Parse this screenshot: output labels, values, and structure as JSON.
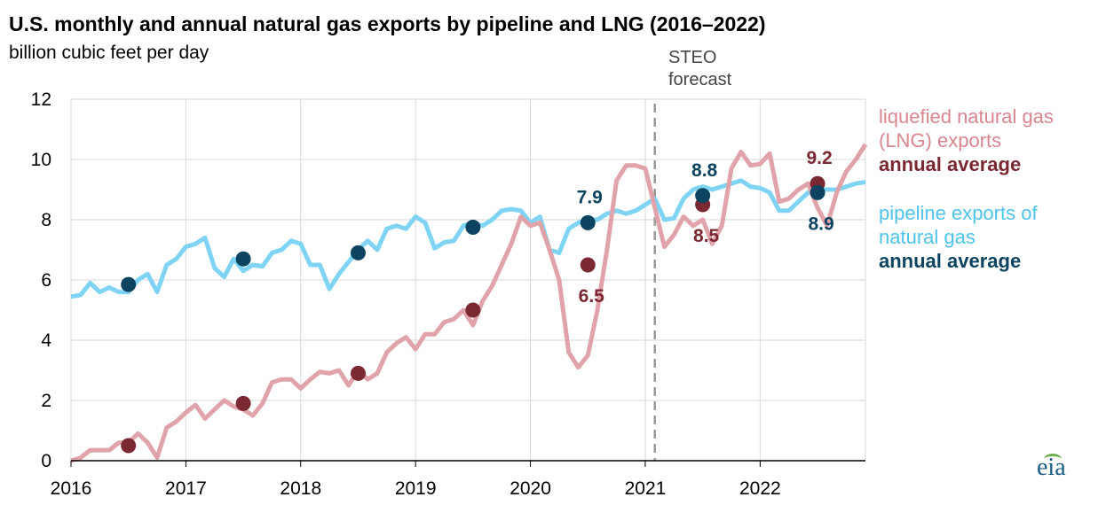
{
  "header": {
    "title": "U.S. monthly and annual natural gas exports by pipeline and LNG (2016–2022)",
    "subtitle": "billion cubic feet per day"
  },
  "annotation": {
    "line1": "STEO",
    "line2": "forecast"
  },
  "legend": {
    "lng_line1": "liquefied natural gas",
    "lng_line2": "(LNG) exports",
    "lng_avg": "annual average",
    "pipe_line1": "pipeline exports of",
    "pipe_line2": "natural gas",
    "pipe_avg": "annual average"
  },
  "logo": {
    "text": "eia"
  },
  "colors": {
    "lng": "#e0a3aa",
    "lng_avg": "#7a2832",
    "pipeline": "#7fd4f5",
    "pipeline_avg": "#0b4360",
    "forecast_line": "#9a9a9a"
  },
  "chart_data": {
    "type": "line",
    "x_unit": "year (monthly data)",
    "xlim": [
      2016,
      2022.917
    ],
    "ylim": [
      0,
      12
    ],
    "yticks": [
      0,
      2,
      4,
      6,
      8,
      10,
      12
    ],
    "xticks": [
      "2016",
      "2017",
      "2018",
      "2019",
      "2020",
      "2021",
      "2022"
    ],
    "grid": true,
    "forecast_start": 2021.083,
    "months_start": "2016-01",
    "series": [
      {
        "name": "liquefied natural gas (LNG) exports",
        "values": [
          0.0,
          0.1,
          0.35,
          0.35,
          0.35,
          0.6,
          0.6,
          0.9,
          0.6,
          0.1,
          1.1,
          1.3,
          1.6,
          1.85,
          1.4,
          1.7,
          2.0,
          1.8,
          1.7,
          1.5,
          1.9,
          2.6,
          2.7,
          2.7,
          2.4,
          2.7,
          2.95,
          2.9,
          3.0,
          2.5,
          3.0,
          2.7,
          2.9,
          3.6,
          3.9,
          4.1,
          3.7,
          4.2,
          4.2,
          4.6,
          4.7,
          5.0,
          4.5,
          5.3,
          5.8,
          6.5,
          7.2,
          8.1,
          7.8,
          7.9,
          7.0,
          6.0,
          3.6,
          3.1,
          3.5,
          5.0,
          7.0,
          9.3,
          9.8,
          9.8,
          9.7,
          8.4,
          7.1,
          7.5,
          8.1,
          7.8,
          8.0,
          7.2,
          7.8,
          9.7,
          10.25,
          9.8,
          9.85,
          10.2,
          8.6,
          8.7,
          9.0,
          9.2,
          8.4,
          7.8,
          8.9,
          9.6,
          10.0,
          10.5
        ]
      },
      {
        "name": "pipeline exports of natural gas",
        "values": [
          5.45,
          5.5,
          5.9,
          5.6,
          5.75,
          5.6,
          5.6,
          6.0,
          6.2,
          5.6,
          6.5,
          6.7,
          7.1,
          7.2,
          7.4,
          6.4,
          6.1,
          6.7,
          6.3,
          6.5,
          6.45,
          6.9,
          7.0,
          7.3,
          7.2,
          6.5,
          6.5,
          5.7,
          6.2,
          6.6,
          7.0,
          7.3,
          7.0,
          7.7,
          7.8,
          7.7,
          8.1,
          7.9,
          7.05,
          7.25,
          7.3,
          7.8,
          7.9,
          7.8,
          8.0,
          8.3,
          8.35,
          8.3,
          7.9,
          8.1,
          7.0,
          6.9,
          7.7,
          7.9,
          8.0,
          8.0,
          8.2,
          8.3,
          8.2,
          8.3,
          8.5,
          8.7,
          8.0,
          8.05,
          8.7,
          9.0,
          9.1,
          9.0,
          9.1,
          9.2,
          9.3,
          9.1,
          9.05,
          8.9,
          8.3,
          8.3,
          8.6,
          8.9,
          9.0,
          9.0,
          9.0,
          9.1,
          9.2,
          9.25
        ]
      },
      {
        "name": "LNG annual average",
        "x": [
          2016.5,
          2017.5,
          2018.5,
          2019.5,
          2020.5,
          2021.5,
          2022.5
        ],
        "values": [
          0.5,
          1.9,
          2.9,
          5.0,
          6.5,
          8.5,
          9.2
        ],
        "labels": [
          "",
          "",
          "",
          "",
          "6.5",
          "8.5",
          "9.2"
        ]
      },
      {
        "name": "pipeline annual average",
        "x": [
          2016.5,
          2017.5,
          2018.5,
          2019.5,
          2020.5,
          2021.5,
          2022.5
        ],
        "values": [
          5.85,
          6.7,
          6.9,
          7.75,
          7.9,
          8.8,
          8.9
        ],
        "labels": [
          "",
          "",
          "",
          "",
          "7.9",
          "8.8",
          "8.9"
        ]
      }
    ]
  }
}
